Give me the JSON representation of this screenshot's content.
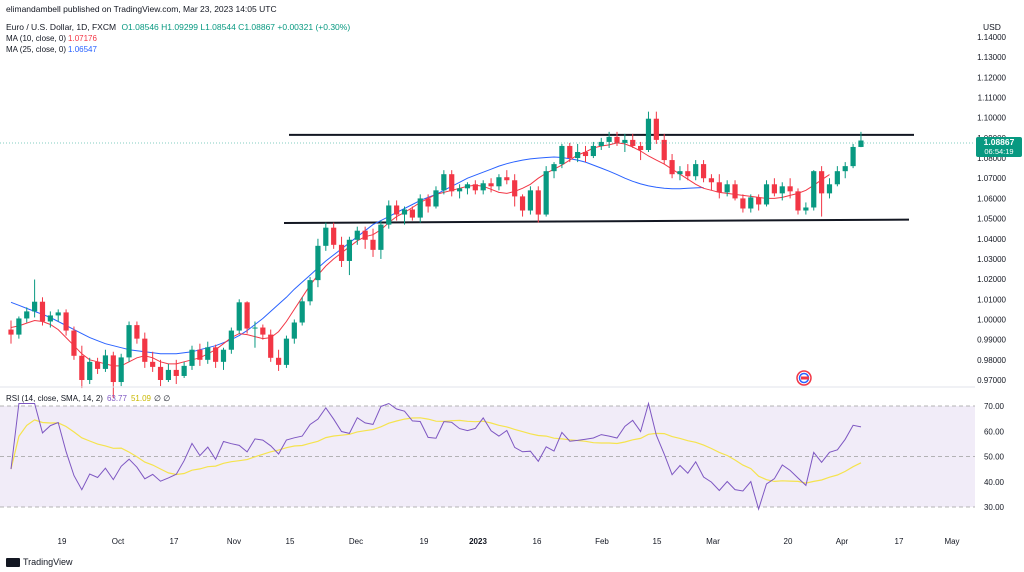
{
  "header": {
    "publisher": "elimandambell published on TradingView.com, Mar 23, 2023 14:05 UTC",
    "symbol": "Euro / U.S. Dollar, 1D, FXCM",
    "ohlc": "O1.08546 H1.09299 L1.08544 C1.08867 +0.00321 (+0.30%)",
    "ma10_label": "MA (10, close, 0)",
    "ma10_value": "1.07176",
    "ma25_label": "MA (25, close, 0)",
    "ma25_value": "1.06547",
    "rsi_label": "RSI (14, close, SMA, 14, 2)",
    "rsi_value": "63.77",
    "rsi_sma_value": "51.09",
    "rsi_extra": "∅ ∅",
    "currency": "USD",
    "price_tag": "1.08867",
    "countdown": "06:54:19"
  },
  "footer": {
    "brand": "TradingView"
  },
  "colors": {
    "up": "#089981",
    "down": "#f23645",
    "ma10": "#f23645",
    "ma25": "#2962ff",
    "rsi": "#7e57c2",
    "rsi_sma": "#f5e34e"
  },
  "chart_data": {
    "type": "candlestick",
    "price_ticks": [
      "1.14000",
      "1.13000",
      "1.12000",
      "1.11000",
      "1.10000",
      "1.09000",
      "1.08000",
      "1.07000",
      "1.06000",
      "1.05000",
      "1.04000",
      "1.03000",
      "1.02000",
      "1.01000",
      "1.00000",
      "0.99000",
      "0.98000",
      "0.97000"
    ],
    "x_ticks": [
      "19",
      "Oct",
      "17",
      "Nov",
      "15",
      "Dec",
      "19",
      "2023",
      "16",
      "Feb",
      "15",
      "Mar",
      "20",
      "Apr",
      "17",
      "May"
    ],
    "rsi_ticks": [
      "70.00",
      "60.00",
      "50.00",
      "40.00",
      "30.00"
    ],
    "rsi_bands": [
      30,
      70
    ],
    "resistance_line": [
      1.0915,
      1.0915
    ],
    "support_line": [
      1.0478,
      1.0495
    ],
    "ohlc": [
      [
        0.995,
        0.9995,
        0.988,
        0.9925
      ],
      [
        0.9925,
        1.0015,
        0.9905,
        1.0005
      ],
      [
        1.0005,
        1.006,
        0.9985,
        1.004
      ],
      [
        1.004,
        1.0198,
        1.001,
        1.0088
      ],
      [
        1.0088,
        1.011,
        0.997,
        0.999
      ],
      [
        0.999,
        1.004,
        0.996,
        1.002
      ],
      [
        1.002,
        1.005,
        0.999,
        1.0035
      ],
      [
        1.0035,
        1.005,
        0.992,
        0.9945
      ],
      [
        0.9945,
        0.9965,
        0.98,
        0.982
      ],
      [
        0.982,
        0.987,
        0.966,
        0.97
      ],
      [
        0.97,
        0.981,
        0.968,
        0.979
      ],
      [
        0.979,
        0.981,
        0.973,
        0.9755
      ],
      [
        0.9755,
        0.985,
        0.974,
        0.9822
      ],
      [
        0.9822,
        0.984,
        0.961,
        0.969
      ],
      [
        0.969,
        0.983,
        0.967,
        0.9812
      ],
      [
        0.9812,
        0.999,
        0.979,
        0.9972
      ],
      [
        0.9972,
        0.999,
        0.988,
        0.9905
      ],
      [
        0.9905,
        0.9935,
        0.976,
        0.979
      ],
      [
        0.979,
        0.984,
        0.974,
        0.9765
      ],
      [
        0.9765,
        0.98,
        0.967,
        0.97
      ],
      [
        0.97,
        0.978,
        0.969,
        0.975
      ],
      [
        0.975,
        0.98,
        0.968,
        0.972
      ],
      [
        0.972,
        0.979,
        0.971,
        0.977
      ],
      [
        0.977,
        0.987,
        0.975,
        0.985
      ],
      [
        0.985,
        0.988,
        0.977,
        0.98
      ],
      [
        0.98,
        0.989,
        0.978,
        0.9862
      ],
      [
        0.9862,
        0.9875,
        0.976,
        0.979
      ],
      [
        0.979,
        0.986,
        0.975,
        0.985
      ],
      [
        0.985,
        0.996,
        0.983,
        0.9945
      ],
      [
        0.9945,
        1.01,
        0.993,
        1.0085
      ],
      [
        1.0085,
        1.009,
        0.993,
        0.9955
      ],
      [
        0.9955,
        0.999,
        0.986,
        0.996
      ],
      [
        0.996,
        0.9975,
        0.99,
        0.9925
      ],
      [
        0.9925,
        0.995,
        0.979,
        0.981
      ],
      [
        0.981,
        0.985,
        0.9745,
        0.9775
      ],
      [
        0.9775,
        0.992,
        0.976,
        0.9905
      ],
      [
        0.9905,
        1.0,
        0.988,
        0.9985
      ],
      [
        0.9985,
        1.011,
        0.997,
        1.009
      ],
      [
        1.009,
        1.021,
        1.007,
        1.0195
      ],
      [
        1.0195,
        1.04,
        1.016,
        1.0365
      ],
      [
        1.0365,
        1.048,
        1.034,
        1.0455
      ],
      [
        1.0455,
        1.048,
        1.035,
        1.037
      ],
      [
        1.037,
        1.041,
        1.026,
        1.029
      ],
      [
        1.029,
        1.041,
        1.022,
        1.0395
      ],
      [
        1.0395,
        1.046,
        1.037,
        1.044
      ],
      [
        1.044,
        1.046,
        1.035,
        1.0395
      ],
      [
        1.0395,
        1.045,
        1.031,
        1.0345
      ],
      [
        1.0345,
        1.049,
        1.03,
        1.047
      ],
      [
        1.047,
        1.059,
        1.045,
        1.0565
      ],
      [
        1.0565,
        1.059,
        1.049,
        1.052
      ],
      [
        1.052,
        1.056,
        1.047,
        1.0545
      ],
      [
        1.0545,
        1.056,
        1.049,
        1.0505
      ],
      [
        1.0505,
        1.062,
        1.048,
        1.06
      ],
      [
        1.06,
        1.062,
        1.053,
        1.056
      ],
      [
        1.056,
        1.066,
        1.055,
        1.064
      ],
      [
        1.064,
        1.074,
        1.062,
        1.072
      ],
      [
        1.072,
        1.074,
        1.061,
        1.0635
      ],
      [
        1.0635,
        1.067,
        1.06,
        1.065
      ],
      [
        1.065,
        1.068,
        1.062,
        1.067
      ],
      [
        1.067,
        1.069,
        1.062,
        1.064
      ],
      [
        1.064,
        1.069,
        1.062,
        1.0675
      ],
      [
        1.0675,
        1.07,
        1.063,
        1.066
      ],
      [
        1.066,
        1.072,
        1.064,
        1.0705
      ],
      [
        1.0705,
        1.074,
        1.067,
        1.069
      ],
      [
        1.069,
        1.072,
        1.056,
        1.061
      ],
      [
        1.061,
        1.062,
        1.051,
        1.054
      ],
      [
        1.054,
        1.066,
        1.052,
        1.064
      ],
      [
        1.064,
        1.066,
        1.048,
        1.052
      ],
      [
        1.052,
        1.076,
        1.051,
        1.0735
      ],
      [
        1.0735,
        1.078,
        1.07,
        1.077
      ],
      [
        1.077,
        1.087,
        1.075,
        1.086
      ],
      [
        1.086,
        1.0875,
        1.078,
        1.08
      ],
      [
        1.08,
        1.087,
        1.078,
        1.083
      ],
      [
        1.083,
        1.086,
        1.078,
        1.081
      ],
      [
        1.081,
        1.088,
        1.08,
        1.086
      ],
      [
        1.086,
        1.09,
        1.084,
        1.088
      ],
      [
        1.088,
        1.093,
        1.085,
        1.0905
      ],
      [
        1.0905,
        1.093,
        1.086,
        1.0875
      ],
      [
        1.0875,
        1.092,
        1.083,
        1.089
      ],
      [
        1.089,
        1.092,
        1.085,
        1.086
      ],
      [
        1.086,
        1.088,
        1.079,
        1.084
      ],
      [
        1.084,
        1.103,
        1.083,
        1.0995
      ],
      [
        1.0995,
        1.103,
        1.087,
        1.089
      ],
      [
        1.089,
        1.092,
        1.077,
        1.079
      ],
      [
        1.079,
        1.082,
        1.07,
        1.072
      ],
      [
        1.072,
        1.076,
        1.069,
        1.0735
      ],
      [
        1.0735,
        1.077,
        1.069,
        1.071
      ],
      [
        1.071,
        1.079,
        1.069,
        1.077
      ],
      [
        1.077,
        1.079,
        1.068,
        1.07
      ],
      [
        1.07,
        1.072,
        1.064,
        1.068
      ],
      [
        1.068,
        1.072,
        1.06,
        1.063
      ],
      [
        1.063,
        1.069,
        1.061,
        1.067
      ],
      [
        1.067,
        1.069,
        1.059,
        1.06
      ],
      [
        1.06,
        1.062,
        1.053,
        1.055
      ],
      [
        1.055,
        1.062,
        1.053,
        1.0605
      ],
      [
        1.0605,
        1.062,
        1.054,
        1.057
      ],
      [
        1.057,
        1.069,
        1.056,
        1.067
      ],
      [
        1.067,
        1.07,
        1.061,
        1.0625
      ],
      [
        1.0625,
        1.068,
        1.059,
        1.066
      ],
      [
        1.066,
        1.07,
        1.06,
        1.0635
      ],
      [
        1.0635,
        1.065,
        1.052,
        1.054
      ],
      [
        1.054,
        1.058,
        1.052,
        1.0555
      ],
      [
        1.0555,
        1.074,
        1.054,
        1.0735
      ],
      [
        1.0735,
        1.076,
        1.051,
        1.0625
      ],
      [
        1.0625,
        1.07,
        1.06,
        1.067
      ],
      [
        1.067,
        1.076,
        1.066,
        1.0735
      ],
      [
        1.0735,
        1.078,
        1.07,
        1.076
      ],
      [
        1.076,
        1.087,
        1.075,
        1.0855
      ],
      [
        1.0855,
        1.093,
        1.0854,
        1.0887
      ]
    ],
    "ma10": [
      0.996,
      0.9968,
      0.9982,
      0.9995,
      0.999,
      0.9975,
      0.995,
      0.991,
      0.987,
      0.983,
      0.98,
      0.979,
      0.978,
      0.977,
      0.977,
      0.979,
      0.981,
      0.982,
      0.981,
      0.979,
      0.978,
      0.978,
      0.979,
      0.98,
      0.981,
      0.983,
      0.985,
      0.988,
      0.991,
      0.993,
      0.9925,
      0.9915,
      0.9905,
      0.991,
      0.994,
      0.999,
      1.005,
      1.011,
      1.017,
      1.022,
      1.0265,
      1.03,
      1.033,
      1.036,
      1.039,
      1.041,
      1.042,
      1.0445,
      1.048,
      1.051,
      1.053,
      1.0555,
      1.058,
      1.06,
      1.062,
      1.063,
      1.064,
      1.065,
      1.066,
      1.0665,
      1.066,
      1.0645,
      1.063,
      1.0625,
      1.0635,
      1.065,
      1.067,
      1.07,
      1.0725,
      1.0745,
      1.0765,
      1.079,
      1.0815,
      1.083,
      1.085,
      1.086,
      1.0865,
      1.0875,
      1.087,
      1.0855,
      1.0835,
      1.081,
      1.079,
      1.077,
      1.0745,
      1.072,
      1.0695,
      1.067,
      1.065,
      1.064,
      1.063,
      1.0625,
      1.062,
      1.0615,
      1.061,
      1.0605,
      1.06,
      1.06,
      1.0605,
      1.0615,
      1.0625,
      1.064,
      1.0665,
      1.0692,
      1.0718
    ],
    "ma25": [
      1.0085,
      1.007,
      1.0055,
      1.004,
      1.0025,
      1.001,
      0.999,
      0.997,
      0.995,
      0.993,
      0.991,
      0.9895,
      0.988,
      0.987,
      0.986,
      0.985,
      0.9845,
      0.984,
      0.9835,
      0.983,
      0.983,
      0.983,
      0.9835,
      0.984,
      0.985,
      0.986,
      0.987,
      0.9885,
      0.99,
      0.992,
      0.9945,
      0.9975,
      1.0005,
      1.004,
      1.0075,
      1.011,
      1.015,
      1.0185,
      1.022,
      1.0255,
      1.029,
      1.032,
      1.035,
      1.038,
      1.041,
      1.044,
      1.047,
      1.049,
      1.051,
      1.053,
      1.055,
      1.057,
      1.059,
      1.0605,
      1.062,
      1.064,
      1.066,
      1.068,
      1.07,
      1.0715,
      1.073,
      1.0745,
      1.076,
      1.0772,
      1.0782,
      1.079,
      1.0796,
      1.08,
      1.0803,
      1.0805,
      1.0803,
      1.0797,
      1.079,
      1.078,
      1.0765,
      1.075,
      1.0735,
      1.0718,
      1.07,
      1.0685,
      1.0672,
      1.0662,
      1.0655,
      1.065,
      1.0648,
      1.0648,
      1.065,
      1.0652,
      1.0654
    ]
  }
}
